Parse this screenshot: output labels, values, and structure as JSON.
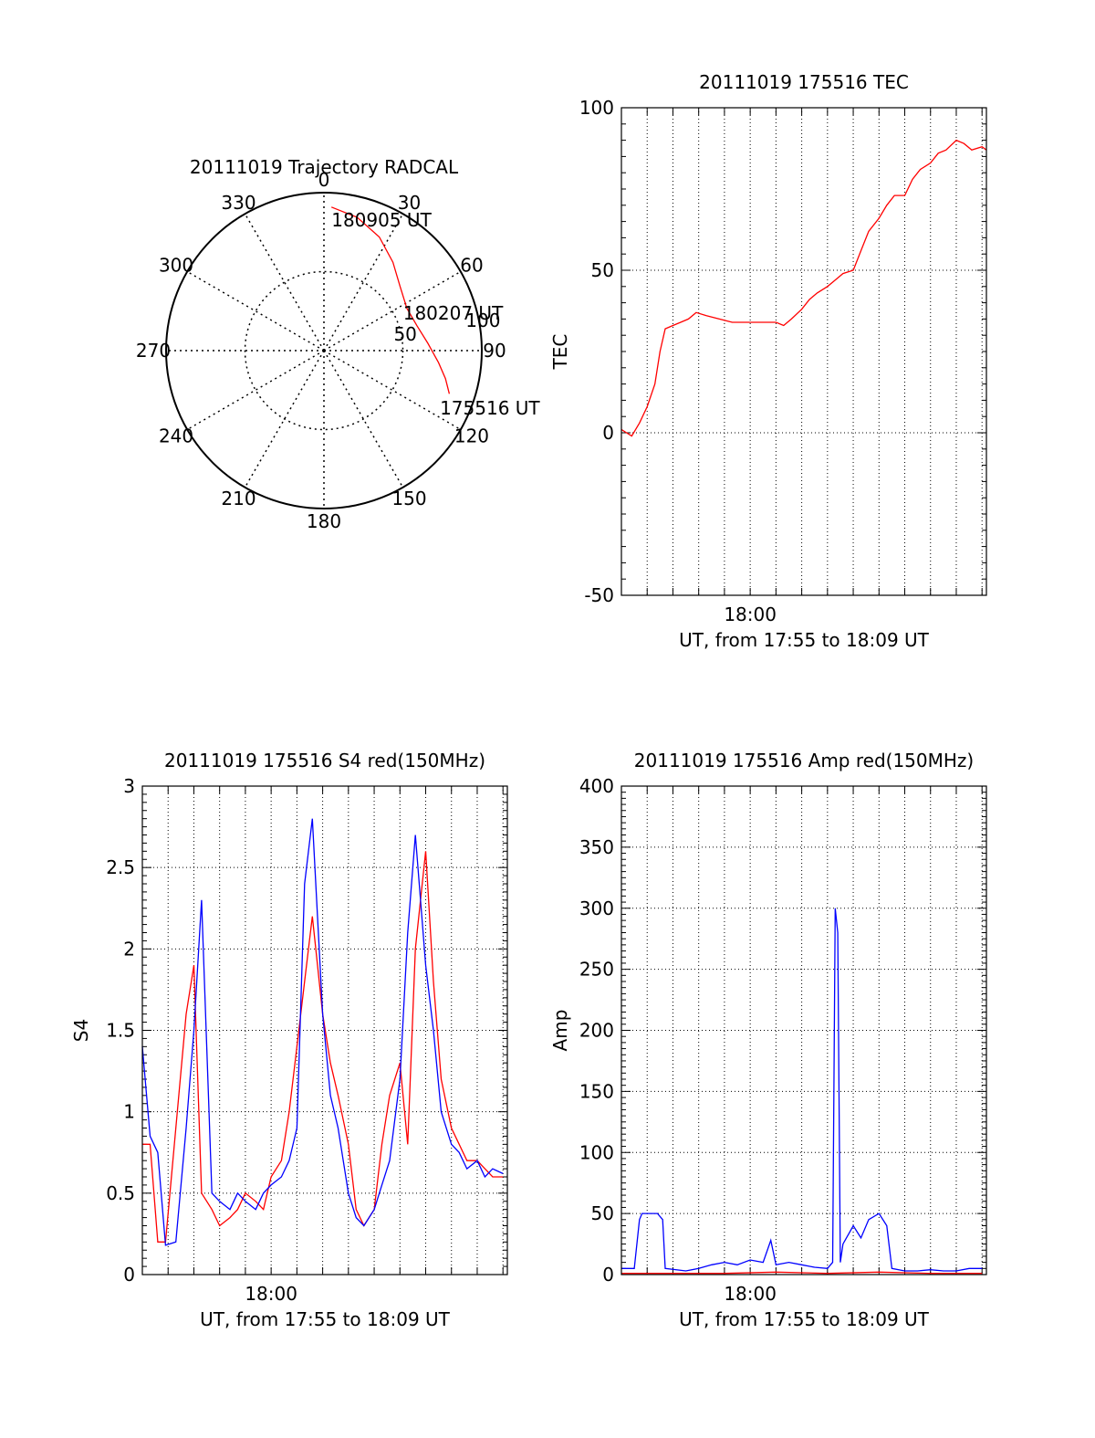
{
  "chart_data": [
    {
      "type": "polar",
      "title": "20111019 Trajectory RADCAL",
      "angle_labels": [
        "0",
        "30",
        "60",
        "90",
        "120",
        "150",
        "180",
        "210",
        "240",
        "270",
        "300",
        "330"
      ],
      "radius_labels": [
        "50",
        "100"
      ],
      "rmax": 100,
      "grid": true,
      "series": [
        {
          "color": "#ff0000",
          "points": [
            {
              "az": 109,
              "zen": 84
            },
            {
              "az": 103,
              "zen": 79
            },
            {
              "az": 96,
              "zen": 73
            },
            {
              "az": 86,
              "zen": 66
            },
            {
              "az": 75,
              "zen": 61
            },
            {
              "az": 63,
              "zen": 59
            },
            {
              "az": 50,
              "zen": 63
            },
            {
              "az": 38,
              "zen": 71
            },
            {
              "az": 26,
              "zen": 80
            },
            {
              "az": 14,
              "zen": 87
            },
            {
              "az": 3,
              "zen": 91
            }
          ]
        }
      ],
      "annotations": [
        {
          "text": "180905 UT",
          "az": 8,
          "zen": 84
        },
        {
          "text": "180207 UT",
          "az": 67,
          "zen": 62
        },
        {
          "text": "175516 UT",
          "az": 114,
          "zen": 88
        }
      ]
    },
    {
      "type": "line",
      "title": "20111019 175516 TEC",
      "xlabel": "UT, from 17:55 to 18:09 UT",
      "ylabel": "TEC",
      "xtick_labels": [
        "18:00"
      ],
      "xlim": [
        0,
        14.17
      ],
      "ylim": [
        -50,
        100
      ],
      "yticks": [
        -50,
        0,
        50,
        100
      ],
      "grid": true,
      "series": [
        {
          "color": "#ff0000",
          "x": [
            0,
            0.2,
            0.4,
            0.7,
            1.0,
            1.3,
            1.5,
            1.7,
            2.0,
            2.3,
            2.6,
            2.9,
            3.3,
            3.8,
            4.3,
            4.8,
            5.0,
            5.5,
            6.0,
            6.3,
            6.6,
            7.0,
            7.3,
            7.6,
            8.0,
            8.3,
            8.6,
            9.0,
            9.3,
            9.6,
            10.0,
            10.3,
            10.6,
            11.0,
            11.3,
            11.6,
            12.0,
            12.3,
            12.6,
            13.0,
            13.3,
            13.6,
            14.0,
            14.17
          ],
          "y": [
            1,
            0,
            -1,
            3,
            8,
            15,
            25,
            32,
            33,
            34,
            35,
            37,
            36,
            35,
            34,
            34,
            34,
            34,
            34,
            33,
            35,
            38,
            41,
            43,
            45,
            47,
            49,
            50,
            56,
            62,
            66,
            70,
            73,
            73,
            78,
            81,
            83,
            86,
            87,
            90,
            89,
            87,
            88,
            87
          ]
        }
      ]
    },
    {
      "type": "line",
      "title": "20111019 175516 S4 red(150MHz)",
      "xlabel": "UT, from 17:55 to 18:09 UT",
      "ylabel": "S4",
      "xtick_labels": [
        "18:00"
      ],
      "xlim": [
        0,
        14.17
      ],
      "ylim": [
        0,
        3
      ],
      "yticks": [
        "0",
        "0.5",
        "1",
        "1.5",
        "2",
        "2.5",
        "3"
      ],
      "grid": true,
      "series": [
        {
          "color": "#ff0000",
          "x": [
            0,
            0.3,
            0.6,
            0.9,
            1.3,
            1.7,
            2.0,
            2.3,
            2.7,
            3.0,
            3.4,
            3.7,
            4.0,
            4.4,
            4.7,
            5.0,
            5.4,
            5.7,
            6.0,
            6.3,
            6.6,
            7.0,
            7.3,
            7.6,
            8.0,
            8.3,
            8.6,
            9.0,
            9.3,
            9.6,
            10.0,
            10.3,
            10.6,
            11.0,
            11.3,
            11.6,
            12.0,
            12.3,
            12.6,
            13.0,
            13.3,
            13.6,
            14.0
          ],
          "y": [
            0.8,
            0.8,
            0.2,
            0.2,
            0.9,
            1.6,
            1.9,
            0.5,
            0.4,
            0.3,
            0.35,
            0.4,
            0.5,
            0.45,
            0.4,
            0.6,
            0.7,
            1.0,
            1.4,
            1.8,
            2.2,
            1.6,
            1.3,
            1.1,
            0.8,
            0.4,
            0.3,
            0.4,
            0.8,
            1.1,
            1.3,
            0.8,
            2.0,
            2.6,
            1.8,
            1.2,
            0.9,
            0.8,
            0.7,
            0.7,
            0.65,
            0.6,
            0.6
          ]
        },
        {
          "color": "#0000ff",
          "x": [
            0,
            0.3,
            0.6,
            0.9,
            1.3,
            1.7,
            2.0,
            2.3,
            2.7,
            3.0,
            3.4,
            3.7,
            4.0,
            4.4,
            4.7,
            5.0,
            5.4,
            5.7,
            6.0,
            6.3,
            6.6,
            7.0,
            7.3,
            7.6,
            8.0,
            8.3,
            8.6,
            9.0,
            9.3,
            9.6,
            10.0,
            10.3,
            10.6,
            11.0,
            11.3,
            11.6,
            12.0,
            12.3,
            12.6,
            13.0,
            13.3,
            13.6,
            14.0
          ],
          "y": [
            1.4,
            0.85,
            0.75,
            0.18,
            0.2,
            0.9,
            1.5,
            2.3,
            0.5,
            0.45,
            0.4,
            0.5,
            0.45,
            0.4,
            0.5,
            0.55,
            0.6,
            0.7,
            0.9,
            2.4,
            2.8,
            1.6,
            1.1,
            0.9,
            0.5,
            0.35,
            0.3,
            0.4,
            0.55,
            0.7,
            1.2,
            2.1,
            2.7,
            1.9,
            1.5,
            1.0,
            0.8,
            0.75,
            0.65,
            0.7,
            0.6,
            0.65,
            0.62
          ]
        }
      ]
    },
    {
      "type": "line",
      "title": "20111019 175516 Amp red(150MHz)",
      "xlabel": "UT, from 17:55 to 18:09 UT",
      "ylabel": "Amp",
      "xtick_labels": [
        "18:00"
      ],
      "xlim": [
        0,
        14.17
      ],
      "ylim": [
        0,
        400
      ],
      "yticks": [
        0,
        50,
        100,
        150,
        200,
        250,
        300,
        350,
        400
      ],
      "grid": true,
      "series": [
        {
          "color": "#0000ff",
          "x": [
            0,
            0.5,
            0.7,
            0.8,
            1.4,
            1.6,
            1.7,
            2.5,
            3.0,
            3.5,
            4.0,
            4.5,
            5.0,
            5.5,
            5.8,
            6.0,
            6.5,
            7.0,
            7.5,
            8.0,
            8.2,
            8.3,
            8.4,
            8.5,
            8.6,
            9.0,
            9.3,
            9.6,
            10.0,
            10.3,
            10.5,
            11.0,
            11.5,
            12.0,
            12.5,
            13.0,
            13.5,
            14.0
          ],
          "y": [
            5,
            5,
            45,
            50,
            50,
            45,
            5,
            3,
            5,
            8,
            10,
            8,
            12,
            10,
            28,
            8,
            10,
            8,
            6,
            5,
            10,
            300,
            280,
            10,
            25,
            40,
            30,
            45,
            50,
            40,
            5,
            3,
            3,
            4,
            3,
            3,
            5,
            5
          ]
        },
        {
          "color": "#ff0000",
          "x": [
            0,
            2,
            4,
            6,
            8,
            10,
            12,
            14
          ],
          "y": [
            1,
            1,
            1,
            2,
            1,
            2,
            1,
            1
          ]
        }
      ]
    }
  ]
}
